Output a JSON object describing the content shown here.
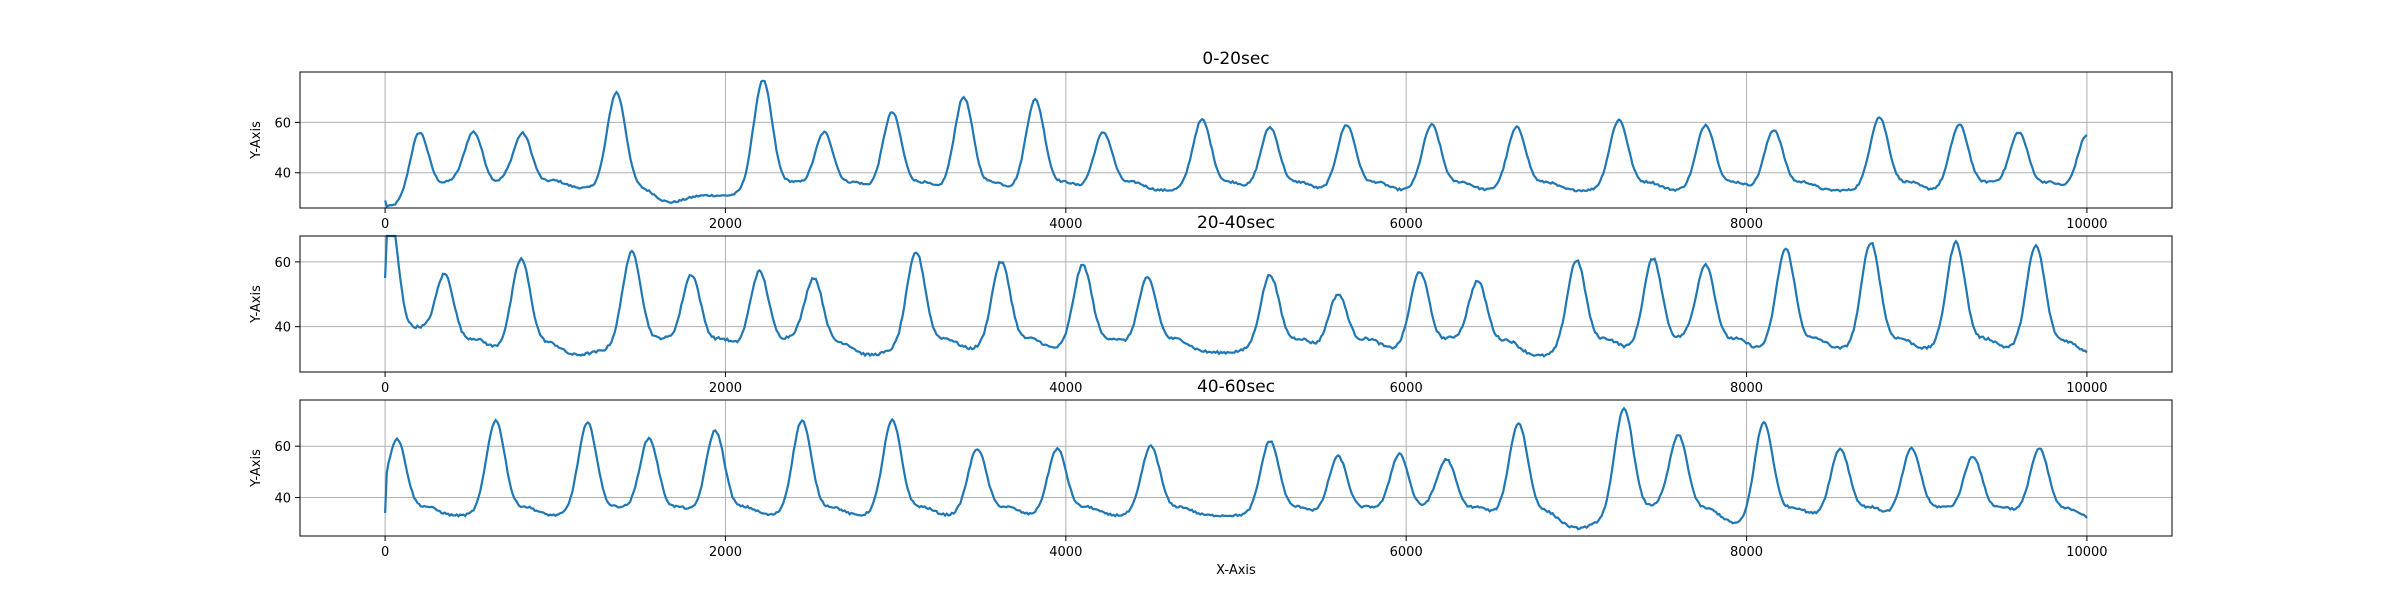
{
  "chart_data": [
    {
      "type": "line",
      "title": "0-20sec",
      "ylabel": "Y-Axis",
      "xlabel": "",
      "xlim": [
        -500,
        10500
      ],
      "ylim": [
        26,
        80
      ],
      "xticks": [
        0,
        2000,
        4000,
        6000,
        8000,
        10000
      ],
      "xtick_labels": [
        "0",
        "2000",
        "4000",
        "6000",
        "8000",
        "10000"
      ],
      "yticks": [
        40,
        60
      ],
      "ytick_labels": [
        "40",
        "60"
      ],
      "grid": true,
      "color": "#1f77b4",
      "baseline": 33,
      "series": [
        {
          "x": [
            0,
            100,
            200,
            520,
            810,
            1100,
            1360,
            1650,
            2000,
            2220,
            2580,
            2980,
            3400,
            3820,
            4220,
            4800,
            5200,
            5650,
            6150,
            6650,
            7250,
            7760,
            8160,
            8780,
            9250,
            9600,
            10000
          ],
          "y": [
            29,
            30,
            59,
            56,
            55,
            34,
            72,
            28,
            31,
            77,
            56,
            64,
            70,
            69,
            56,
            61,
            58,
            59,
            59,
            58,
            61,
            59,
            57,
            62,
            59,
            56,
            55
          ]
        }
      ]
    },
    {
      "type": "line",
      "title": "20-40sec",
      "ylabel": "Y-Axis",
      "xlabel": "",
      "xlim": [
        -500,
        10500
      ],
      "ylim": [
        26,
        68
      ],
      "xticks": [
        0,
        2000,
        4000,
        6000,
        8000,
        10000
      ],
      "xtick_labels": [
        "0",
        "2000",
        "4000",
        "6000",
        "8000",
        "10000"
      ],
      "yticks": [
        40,
        60
      ],
      "ytick_labels": [
        "40",
        "60"
      ],
      "grid": true,
      "color": "#1f77b4",
      "baseline": 33,
      "series": [
        {
          "x": [
            0,
            30,
            350,
            800,
            1080,
            1450,
            1800,
            2200,
            2520,
            2800,
            3120,
            3620,
            4100,
            4480,
            4900,
            5200,
            5600,
            6080,
            6420,
            6800,
            7000,
            7450,
            7760,
            8230,
            8730,
            9230,
            9700,
            9980
          ],
          "y": [
            55,
            59,
            56,
            61,
            31,
            63,
            56,
            57,
            55,
            31,
            63,
            60,
            59,
            55,
            32,
            56,
            50,
            57,
            54,
            31,
            61,
            61,
            59,
            64,
            66,
            66,
            65,
            32
          ]
        }
      ]
    },
    {
      "type": "line",
      "title": "40-60sec",
      "ylabel": "Y-Axis",
      "xlabel": "X-Axis",
      "xlim": [
        -500,
        10500
      ],
      "ylim": [
        25,
        78
      ],
      "xticks": [
        0,
        2000,
        4000,
        6000,
        8000,
        10000
      ],
      "xtick_labels": [
        "0",
        "2000",
        "4000",
        "6000",
        "8000",
        "10000"
      ],
      "yticks": [
        40,
        60
      ],
      "ytick_labels": [
        "40",
        "60"
      ],
      "grid": true,
      "color": "#1f77b4",
      "baseline": 33,
      "series": [
        {
          "x": [
            0,
            70,
            650,
            1190,
            1550,
            1940,
            2450,
            2980,
            3480,
            3950,
            4500,
            5200,
            5600,
            5960,
            6240,
            6660,
            7000,
            7280,
            7600,
            8000,
            8100,
            8550,
            8970,
            9330,
            9720,
            10000
          ],
          "y": [
            34,
            62,
            70,
            69,
            63,
            66,
            70,
            70,
            59,
            59,
            60,
            62,
            56,
            57,
            54,
            69,
            28,
            75,
            64,
            29,
            72,
            59,
            59,
            56,
            59,
            32
          ]
        }
      ]
    }
  ]
}
